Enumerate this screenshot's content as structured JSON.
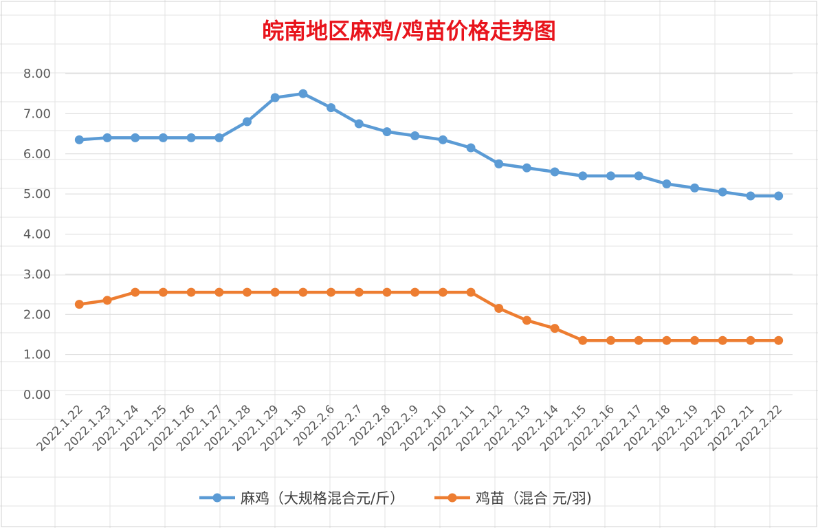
{
  "chart_data": {
    "type": "line",
    "title": "皖南地区麻鸡/鸡苗价格走势图",
    "title_color": "#e8141c",
    "xlabel": "",
    "ylabel": "",
    "ylim": [
      0,
      8
    ],
    "yticks": [
      "0.00",
      "1.00",
      "2.00",
      "3.00",
      "4.00",
      "5.00",
      "6.00",
      "7.00",
      "8.00"
    ],
    "grid": true,
    "legend_position": "bottom",
    "categories": [
      "2022.1.22",
      "2022.1.23",
      "2022.1.24",
      "2022.1.25",
      "2022.1.26",
      "2022.1.27",
      "2022.1.28",
      "2022.1.29",
      "2022.1.30",
      "2022.2.6",
      "2022.2.7",
      "2022.2.8",
      "2022.2.9",
      "2022.2.10",
      "2022.2.11",
      "2022.2.12",
      "2022.2.13",
      "2022.2.14",
      "2022.2.15",
      "2022.2.16",
      "2022.2.17",
      "2022.2.18",
      "2022.2.19",
      "2022.2.20",
      "2022.2.21",
      "2022.2.22"
    ],
    "series": [
      {
        "name": "麻鸡（大规格混合元/斤）",
        "color": "#5b9bd5",
        "values": [
          6.35,
          6.4,
          6.4,
          6.4,
          6.4,
          6.4,
          6.8,
          7.4,
          7.5,
          7.15,
          6.75,
          6.55,
          6.45,
          6.35,
          6.15,
          5.75,
          5.65,
          5.55,
          5.45,
          5.45,
          5.45,
          5.25,
          5.15,
          5.05,
          4.95,
          4.95
        ]
      },
      {
        "name": "鸡苗（混合 元/羽)",
        "color": "#ed7d31",
        "values": [
          2.25,
          2.35,
          2.55,
          2.55,
          2.55,
          2.55,
          2.55,
          2.55,
          2.55,
          2.55,
          2.55,
          2.55,
          2.55,
          2.55,
          2.55,
          2.15,
          1.85,
          1.65,
          1.35,
          1.35,
          1.35,
          1.35,
          1.35,
          1.35,
          1.35,
          1.35
        ]
      }
    ]
  }
}
